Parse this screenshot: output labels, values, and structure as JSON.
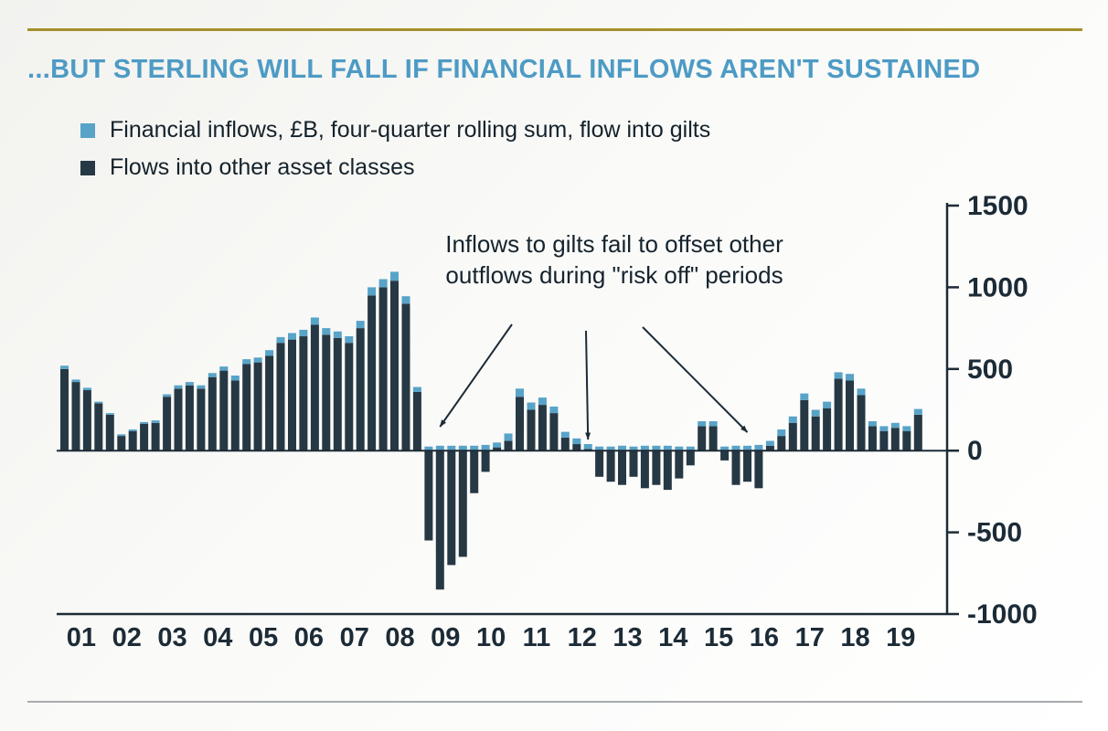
{
  "title": "...BUT STERLING WILL FALL IF FINANCIAL INFLOWS AREN'T SUSTAINED",
  "legend": [
    {
      "label": "Financial inflows, £B, four-quarter rolling sum, flow into gilts",
      "color": "#58a3c8"
    },
    {
      "label": "Flows into other asset classes",
      "color": "#263844"
    }
  ],
  "annotation": {
    "text": "Inflows to gilts fail to offset other outflows during \"risk off\" periods",
    "arrow_target_quarters": [
      33,
      46,
      60
    ]
  },
  "colors": {
    "title": "#4d9bc5",
    "gold_rule": "#a4902c",
    "ink": "#1c2b36",
    "gilts_bar": "#58a3c8",
    "other_bar": "#263844",
    "bottom_rule": "#a7abae"
  },
  "chart_data": {
    "type": "bar",
    "stacked": true,
    "title": "...BUT STERLING WILL FALL IF FINANCIAL INFLOWS AREN'T SUSTAINED",
    "xlabel": "",
    "ylabel": "",
    "x_years": [
      "01",
      "02",
      "03",
      "04",
      "05",
      "06",
      "07",
      "08",
      "09",
      "10",
      "11",
      "12",
      "13",
      "14",
      "15",
      "16",
      "17",
      "18",
      "19"
    ],
    "quarters_per_year": 4,
    "ylim": [
      -1000,
      1500
    ],
    "y_ticks": [
      1500,
      1000,
      500,
      0,
      -500,
      -1000
    ],
    "grid": false,
    "axis_side": "right",
    "series": [
      {
        "name": "Flows into other asset classes",
        "color": "#263844",
        "values": [
          500,
          420,
          370,
          290,
          220,
          90,
          120,
          165,
          170,
          330,
          380,
          400,
          380,
          450,
          490,
          430,
          530,
          540,
          580,
          660,
          680,
          700,
          770,
          710,
          690,
          660,
          750,
          950,
          1000,
          1040,
          900,
          360,
          -550,
          -850,
          -700,
          -650,
          -260,
          -130,
          20,
          60,
          330,
          250,
          280,
          230,
          80,
          40,
          10,
          -160,
          -190,
          -210,
          -160,
          -230,
          -210,
          -240,
          -170,
          -90,
          150,
          150,
          -60,
          -210,
          -190,
          -230,
          30,
          90,
          170,
          310,
          210,
          260,
          440,
          430,
          340,
          150,
          120,
          140,
          120,
          220
        ]
      },
      {
        "name": "Financial inflows, £B, four-quarter rolling sum, flow into gilts",
        "color": "#58a3c8",
        "values": [
          20,
          15,
          15,
          10,
          10,
          10,
          10,
          10,
          15,
          15,
          20,
          20,
          20,
          25,
          25,
          30,
          30,
          30,
          35,
          35,
          40,
          40,
          45,
          40,
          40,
          40,
          45,
          50,
          50,
          55,
          45,
          30,
          25,
          30,
          30,
          30,
          30,
          35,
          30,
          45,
          50,
          45,
          45,
          40,
          35,
          35,
          30,
          25,
          25,
          30,
          25,
          30,
          30,
          30,
          25,
          25,
          30,
          30,
          25,
          30,
          30,
          35,
          30,
          40,
          40,
          40,
          40,
          40,
          40,
          40,
          40,
          30,
          30,
          30,
          30,
          35
        ]
      }
    ]
  }
}
